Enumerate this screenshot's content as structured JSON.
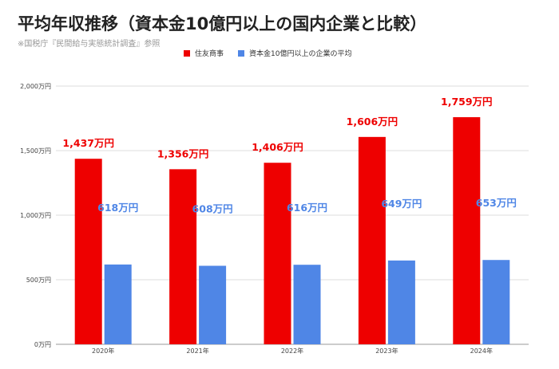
{
  "title": "平均年収推移（資本金10億円以上の国内企業と比較）",
  "subtitle": "※国税庁『民間給与実態統計調査』参照",
  "colors": {
    "series1": "#ee0000",
    "series2": "#4f86e6",
    "grid": "#dddddd",
    "axis": "#999999"
  },
  "chart_data": {
    "type": "bar",
    "categories": [
      "2020年",
      "2021年",
      "2022年",
      "2023年",
      "2024年"
    ],
    "series": [
      {
        "name": "住友商事",
        "values": [
          1437,
          1356,
          1406,
          1606,
          1759
        ],
        "labels": [
          "1,437万円",
          "1,356万円",
          "1,406万円",
          "1,606万円",
          "1,759万円"
        ]
      },
      {
        "name": "資本金10億円以上の企業の平均",
        "values": [
          618,
          608,
          616,
          649,
          653
        ],
        "labels": [
          "618万円",
          "608万円",
          "616万円",
          "649万円",
          "653万円"
        ]
      }
    ],
    "yticks": [
      "0万円",
      "500万円",
      "1,000万円",
      "1,500万円",
      "2,000万円"
    ],
    "ylim": [
      0,
      2000
    ],
    "grid": true,
    "legend": "top"
  }
}
